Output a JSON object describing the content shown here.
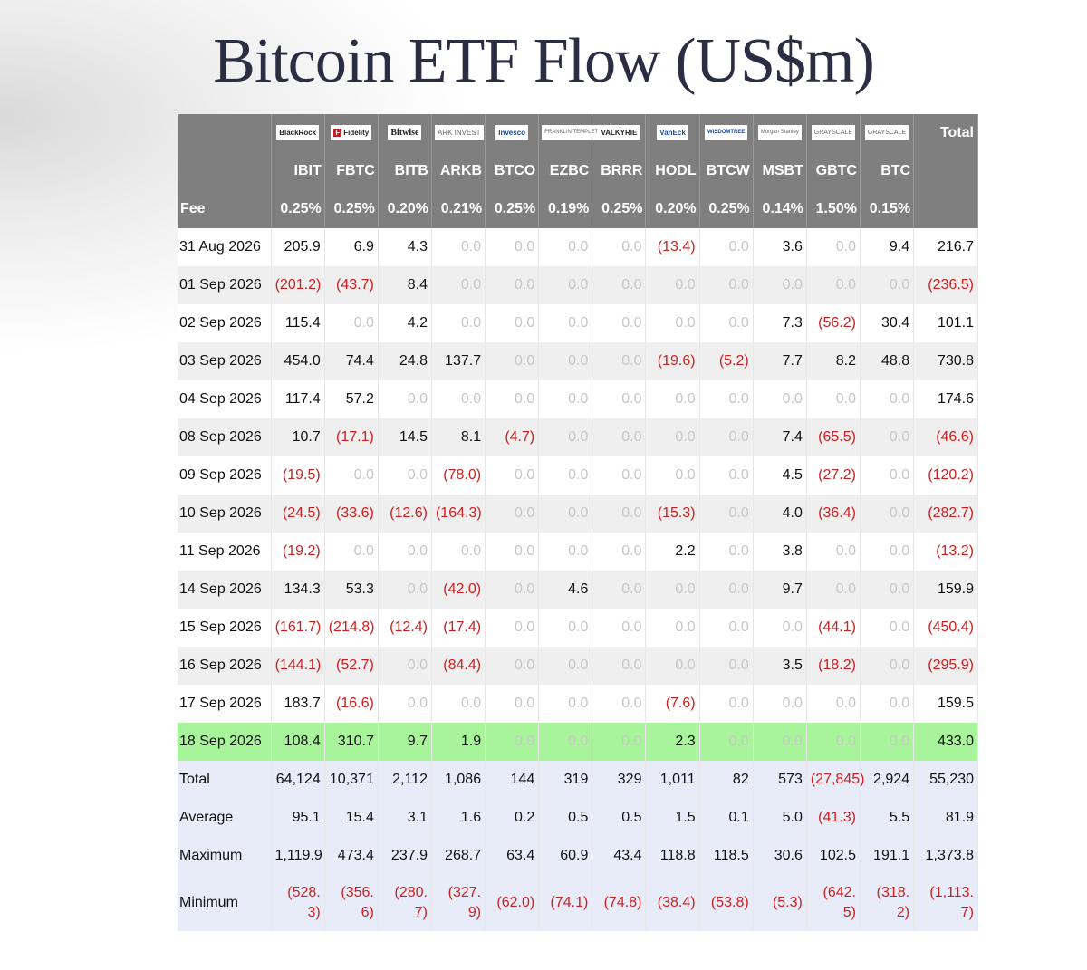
{
  "title": "Bitcoin ETF Flow (US$m)",
  "header": {
    "fee_label": "Fee",
    "total_label": "Total",
    "issuers": [
      "BlackRock",
      "Fidelity",
      "Bitwise",
      "ARK INVEST",
      "Invesco",
      "FRANKLIN TEMPLETON",
      "VALKYRIE",
      "VanEck",
      "WISDOMTREE",
      "Morgan Stanley",
      "GRAYSCALE",
      "GRAYSCALE"
    ],
    "tickers": [
      "IBIT",
      "FBTC",
      "BITB",
      "ARKB",
      "BTCO",
      "EZBC",
      "BRRR",
      "HODL",
      "BTCW",
      "MSBT",
      "GBTC",
      "BTC"
    ],
    "fees": [
      "0.25%",
      "0.25%",
      "0.20%",
      "0.21%",
      "0.25%",
      "0.19%",
      "0.25%",
      "0.20%",
      "0.25%",
      "0.14%",
      "1.50%",
      "0.15%"
    ]
  },
  "rows": [
    {
      "date": "31 Aug 2026",
      "values": [
        "205.9",
        "6.9",
        "4.3",
        "0.0",
        "0.0",
        "0.0",
        "0.0",
        "(13.4)",
        "0.0",
        "3.6",
        "0.0",
        "9.4"
      ],
      "total": "216.7"
    },
    {
      "date": "01 Sep 2026",
      "values": [
        "(201.2)",
        "(43.7)",
        "8.4",
        "0.0",
        "0.0",
        "0.0",
        "0.0",
        "0.0",
        "0.0",
        "0.0",
        "0.0",
        "0.0"
      ],
      "total": "(236.5)"
    },
    {
      "date": "02 Sep 2026",
      "values": [
        "115.4",
        "0.0",
        "4.2",
        "0.0",
        "0.0",
        "0.0",
        "0.0",
        "0.0",
        "0.0",
        "7.3",
        "(56.2)",
        "30.4"
      ],
      "total": "101.1"
    },
    {
      "date": "03 Sep 2026",
      "values": [
        "454.0",
        "74.4",
        "24.8",
        "137.7",
        "0.0",
        "0.0",
        "0.0",
        "(19.6)",
        "(5.2)",
        "7.7",
        "8.2",
        "48.8"
      ],
      "total": "730.8"
    },
    {
      "date": "04 Sep 2026",
      "values": [
        "117.4",
        "57.2",
        "0.0",
        "0.0",
        "0.0",
        "0.0",
        "0.0",
        "0.0",
        "0.0",
        "0.0",
        "0.0",
        "0.0"
      ],
      "total": "174.6"
    },
    {
      "date": "08 Sep 2026",
      "values": [
        "10.7",
        "(17.1)",
        "14.5",
        "8.1",
        "(4.7)",
        "0.0",
        "0.0",
        "0.0",
        "0.0",
        "7.4",
        "(65.5)",
        "0.0"
      ],
      "total": "(46.6)"
    },
    {
      "date": "09 Sep 2026",
      "values": [
        "(19.5)",
        "0.0",
        "0.0",
        "(78.0)",
        "0.0",
        "0.0",
        "0.0",
        "0.0",
        "0.0",
        "4.5",
        "(27.2)",
        "0.0"
      ],
      "total": "(120.2)"
    },
    {
      "date": "10 Sep 2026",
      "values": [
        "(24.5)",
        "(33.6)",
        "(12.6)",
        "(164.3)",
        "0.0",
        "0.0",
        "0.0",
        "(15.3)",
        "0.0",
        "4.0",
        "(36.4)",
        "0.0"
      ],
      "total": "(282.7)"
    },
    {
      "date": "11 Sep 2026",
      "values": [
        "(19.2)",
        "0.0",
        "0.0",
        "0.0",
        "0.0",
        "0.0",
        "0.0",
        "2.2",
        "0.0",
        "3.8",
        "0.0",
        "0.0"
      ],
      "total": "(13.2)"
    },
    {
      "date": "14 Sep 2026",
      "values": [
        "134.3",
        "53.3",
        "0.0",
        "(42.0)",
        "0.0",
        "4.6",
        "0.0",
        "0.0",
        "0.0",
        "9.7",
        "0.0",
        "0.0"
      ],
      "total": "159.9"
    },
    {
      "date": "15 Sep 2026",
      "values": [
        "(161.7)",
        "(214.8)",
        "(12.4)",
        "(17.4)",
        "0.0",
        "0.0",
        "0.0",
        "0.0",
        "0.0",
        "0.0",
        "(44.1)",
        "0.0"
      ],
      "total": "(450.4)"
    },
    {
      "date": "16 Sep 2026",
      "values": [
        "(144.1)",
        "(52.7)",
        "0.0",
        "(84.4)",
        "0.0",
        "0.0",
        "0.0",
        "0.0",
        "0.0",
        "3.5",
        "(18.2)",
        "0.0"
      ],
      "total": "(295.9)"
    },
    {
      "date": "17 Sep 2026",
      "values": [
        "183.7",
        "(16.6)",
        "0.0",
        "0.0",
        "0.0",
        "0.0",
        "0.0",
        "(7.6)",
        "0.0",
        "0.0",
        "0.0",
        "0.0"
      ],
      "total": "159.5"
    },
    {
      "date": "18 Sep 2026",
      "values": [
        "108.4",
        "310.7",
        "9.7",
        "1.9",
        "0.0",
        "0.0",
        "0.0",
        "2.3",
        "0.0",
        "0.0",
        "0.0",
        "0.0"
      ],
      "total": "433.0",
      "highlight": true
    }
  ],
  "stats": [
    {
      "label": "Total",
      "values": [
        "64,124",
        "10,371",
        "2,112",
        "1,086",
        "144",
        "319",
        "329",
        "1,011",
        "82",
        "573",
        "(27,845)",
        "2,924"
      ],
      "total": "55,230"
    },
    {
      "label": "Average",
      "values": [
        "95.1",
        "15.4",
        "3.1",
        "1.6",
        "0.2",
        "0.5",
        "0.5",
        "1.5",
        "0.1",
        "5.0",
        "(41.3)",
        "5.5"
      ],
      "total": "81.9"
    },
    {
      "label": "Maximum",
      "values": [
        "1,119.9",
        "473.4",
        "237.9",
        "268.7",
        "63.4",
        "60.9",
        "43.4",
        "118.8",
        "118.5",
        "30.6",
        "102.5",
        "191.1"
      ],
      "total": "1,373.8"
    },
    {
      "label": "Minimum",
      "values": [
        "(528.3)",
        "(356.6)",
        "(280.7)",
        "(327.9)",
        "(62.0)",
        "(74.1)",
        "(74.8)",
        "(38.4)",
        "(53.8)",
        "(5.3)",
        "(642.5)",
        "(318.2)"
      ],
      "total": "(1,113.7)"
    }
  ]
}
